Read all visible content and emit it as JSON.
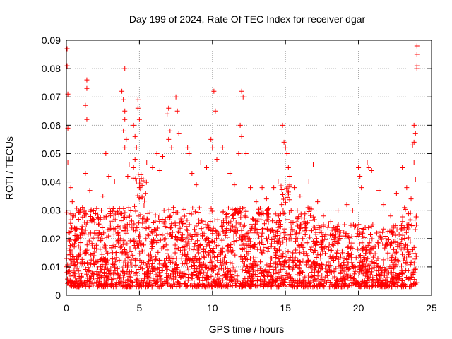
{
  "chart_data": {
    "type": "scatter",
    "title": "Day 199 of 2024, Rate Of TEC Index for receiver dgar",
    "xlabel": "GPS time / hours",
    "ylabel": "ROTI / TECUs",
    "xlim": [
      0,
      25
    ],
    "ylim": [
      0,
      0.09
    ],
    "x_ticks": [
      "0",
      "5",
      "10",
      "15",
      "20",
      "25"
    ],
    "y_ticks": [
      "0",
      "0.01",
      "0.02",
      "0.03",
      "0.04",
      "0.05",
      "0.06",
      "0.07",
      "0.08",
      "0.09"
    ],
    "grid": true,
    "marker": "plus",
    "series_color": "#ff0000",
    "series": [
      {
        "values": [
          [
            0.05,
            0.087
          ],
          [
            0.05,
            0.081
          ],
          [
            0.1,
            0.071
          ],
          [
            0.1,
            0.059
          ],
          [
            0.1,
            0.047
          ],
          [
            0.3,
            0.038
          ],
          [
            0.4,
            0.033
          ],
          [
            0.5,
            0.028
          ],
          [
            0.2,
            0.022
          ],
          [
            1.4,
            0.076
          ],
          [
            1.4,
            0.073
          ],
          [
            1.3,
            0.067
          ],
          [
            1.4,
            0.062
          ],
          [
            1.3,
            0.043
          ],
          [
            1.6,
            0.037
          ],
          [
            1.1,
            0.031
          ],
          [
            2.2,
            0.027
          ],
          [
            2.5,
            0.035
          ],
          [
            2.7,
            0.05
          ],
          [
            2.9,
            0.042
          ],
          [
            3.3,
            0.04
          ],
          [
            3.8,
            0.072
          ],
          [
            3.9,
            0.069
          ],
          [
            4.0,
            0.08
          ],
          [
            4.0,
            0.065
          ],
          [
            4.0,
            0.062
          ],
          [
            3.9,
            0.058
          ],
          [
            4.1,
            0.055
          ],
          [
            4.0,
            0.052
          ],
          [
            4.3,
            0.046
          ],
          [
            4.2,
            0.042
          ],
          [
            4.6,
            0.06
          ],
          [
            4.7,
            0.056
          ],
          [
            4.8,
            0.052
          ],
          [
            4.7,
            0.048
          ],
          [
            4.6,
            0.045
          ],
          [
            4.9,
            0.069
          ],
          [
            4.9,
            0.066
          ],
          [
            5.0,
            0.062
          ],
          [
            4.8,
            0.04
          ],
          [
            5.0,
            0.038
          ],
          [
            5.5,
            0.047
          ],
          [
            5.9,
            0.045
          ],
          [
            6.2,
            0.05
          ],
          [
            6.4,
            0.044
          ],
          [
            6.6,
            0.049
          ],
          [
            6.9,
            0.064
          ],
          [
            7.0,
            0.066
          ],
          [
            7.1,
            0.058
          ],
          [
            7.0,
            0.055
          ],
          [
            7.2,
            0.052
          ],
          [
            7.5,
            0.07
          ],
          [
            7.6,
            0.065
          ],
          [
            7.7,
            0.057
          ],
          [
            8.3,
            0.052
          ],
          [
            8.4,
            0.05
          ],
          [
            8.6,
            0.043
          ],
          [
            8.9,
            0.039
          ],
          [
            9.2,
            0.047
          ],
          [
            9.6,
            0.045
          ],
          [
            9.9,
            0.055
          ],
          [
            10.1,
            0.072
          ],
          [
            10.2,
            0.065
          ],
          [
            10.0,
            0.052
          ],
          [
            10.3,
            0.048
          ],
          [
            10.7,
            0.052
          ],
          [
            11.2,
            0.043
          ],
          [
            11.5,
            0.039
          ],
          [
            11.8,
            0.05
          ],
          [
            12.0,
            0.072
          ],
          [
            12.1,
            0.07
          ],
          [
            11.9,
            0.06
          ],
          [
            12.0,
            0.056
          ],
          [
            12.3,
            0.05
          ],
          [
            12.6,
            0.038
          ],
          [
            13.0,
            0.033
          ],
          [
            13.4,
            0.038
          ],
          [
            13.7,
            0.034
          ],
          [
            14.2,
            0.038
          ],
          [
            14.5,
            0.04
          ],
          [
            14.8,
            0.06
          ],
          [
            14.9,
            0.054
          ],
          [
            15.0,
            0.052
          ],
          [
            15.1,
            0.05
          ],
          [
            15.2,
            0.045
          ],
          [
            15.3,
            0.042
          ],
          [
            15.6,
            0.038
          ],
          [
            16.0,
            0.035
          ],
          [
            16.6,
            0.04
          ],
          [
            16.9,
            0.046
          ],
          [
            17.2,
            0.033
          ],
          [
            17.6,
            0.028
          ],
          [
            18.1,
            0.026
          ],
          [
            18.6,
            0.03
          ],
          [
            19.2,
            0.032
          ],
          [
            19.6,
            0.03
          ],
          [
            20.0,
            0.045
          ],
          [
            20.1,
            0.042
          ],
          [
            20.2,
            0.038
          ],
          [
            20.6,
            0.047
          ],
          [
            20.7,
            0.045
          ],
          [
            20.9,
            0.044
          ],
          [
            21.4,
            0.037
          ],
          [
            21.7,
            0.032
          ],
          [
            22.2,
            0.028
          ],
          [
            22.6,
            0.036
          ],
          [
            23.0,
            0.045
          ],
          [
            23.3,
            0.038
          ],
          [
            23.6,
            0.034
          ],
          [
            23.8,
            0.06
          ],
          [
            23.9,
            0.057
          ],
          [
            23.8,
            0.054
          ],
          [
            23.7,
            0.053
          ],
          [
            23.8,
            0.047
          ],
          [
            23.9,
            0.041
          ],
          [
            24.0,
            0.088
          ],
          [
            24.0,
            0.085
          ],
          [
            24.0,
            0.081
          ],
          [
            24.0,
            0.08
          ]
        ]
      }
    ]
  }
}
